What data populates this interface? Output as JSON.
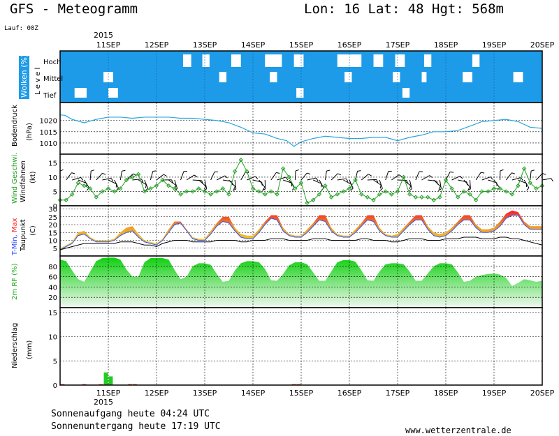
{
  "header": {
    "title": "GFS - Meteogramm",
    "location": "Lon: 16  Lat: 48  Hgt: 568m",
    "run": "Lauf: 00Z"
  },
  "axis": {
    "year": "2015",
    "dates": [
      "11SEP",
      "12SEP",
      "13SEP",
      "14SEP",
      "15SEP",
      "16SEP",
      "17SEP",
      "18SEP",
      "19SEP",
      "20SEP"
    ]
  },
  "footer": {
    "sunrise": "Sonnenaufgang heute 04:24 UTC",
    "sunset": "Sonnenuntergang heute 17:19 UTC",
    "site": "www.wetterzentrale.de"
  },
  "colors": {
    "cloud_bg": "#1e9be8",
    "pressure_line": "#29a6dc",
    "wind_line": "#22a022",
    "tmin_label": "#2040ff",
    "tmax_label": "#ff2020",
    "rh_fill": "#22cc22",
    "precip_bar": "#22cc22",
    "precip_small": "#e05020"
  },
  "chart_data": [
    {
      "type": "heatmap",
      "panel": "clouds",
      "ylabel": "Wolken (%)",
      "ylabel2": "L e v e l",
      "levels": [
        "Hoch",
        "Mittel",
        "Tief"
      ],
      "x_days": [
        10.0,
        20.0
      ],
      "cover_note": "blue = cloud cover; white gaps = clear",
      "clear_intervals": {
        "Hoch": [
          [
            12.55,
            12.72
          ],
          [
            12.95,
            13.1
          ],
          [
            13.55,
            13.75
          ],
          [
            14.25,
            14.6
          ],
          [
            14.85,
            15.05
          ],
          [
            15.75,
            16.25
          ],
          [
            16.5,
            16.7
          ],
          [
            16.95,
            17.15
          ],
          [
            17.55,
            17.7
          ],
          [
            18.55,
            18.7
          ]
        ],
        "Mittel": [
          [
            10.9,
            11.1
          ],
          [
            13.3,
            13.45
          ],
          [
            14.35,
            14.5
          ],
          [
            15.9,
            16.05
          ],
          [
            16.9,
            17.05
          ],
          [
            17.5,
            17.6
          ],
          [
            18.35,
            18.55
          ],
          [
            19.4,
            19.6
          ]
        ],
        "Tief": [
          [
            10.3,
            10.55
          ],
          [
            11.0,
            11.2
          ],
          [
            14.9,
            15.05
          ],
          [
            17.1,
            17.25
          ]
        ]
      }
    },
    {
      "type": "line",
      "panel": "pressure",
      "ylabel": "Bodendruck",
      "ylabel2": "(hPa)",
      "ylim": [
        1005,
        1028
      ],
      "yticks": [
        1010,
        1015,
        1020
      ],
      "x": [
        10.0,
        10.1,
        10.25,
        10.5,
        10.75,
        11.0,
        11.25,
        11.5,
        11.75,
        12.0,
        12.25,
        12.5,
        12.75,
        13.0,
        13.25,
        13.5,
        13.75,
        14.0,
        14.25,
        14.5,
        14.7,
        14.85,
        15.0,
        15.25,
        15.5,
        15.75,
        16.0,
        16.25,
        16.5,
        16.75,
        17.0,
        17.25,
        17.5,
        17.75,
        18.0,
        18.25,
        18.5,
        18.75,
        19.0,
        19.25,
        19.5,
        19.75,
        20.0
      ],
      "y": [
        1022.5,
        1022.3,
        1020.5,
        1019.0,
        1020.5,
        1021.5,
        1021.5,
        1021.0,
        1021.5,
        1021.5,
        1021.5,
        1021.0,
        1021.0,
        1020.5,
        1020.0,
        1019.0,
        1017.0,
        1014.5,
        1014.0,
        1012.0,
        1011.0,
        1008.5,
        1010.5,
        1012.0,
        1013.0,
        1012.5,
        1012.0,
        1012.0,
        1012.5,
        1012.5,
        1011.0,
        1012.5,
        1013.5,
        1015.0,
        1015.0,
        1015.5,
        1017.5,
        1019.5,
        1020.0,
        1020.5,
        1019.5,
        1017.0,
        1016.5
      ]
    },
    {
      "type": "line",
      "panel": "wind",
      "ylabel": "Wind Geschwi.",
      "ylabel2": "Windfahnen",
      "ylabel3": "(kt)",
      "ylim": [
        0,
        18
      ],
      "yticks": [
        0,
        5,
        10,
        15
      ],
      "x": [
        10.0,
        10.125,
        10.25,
        10.375,
        10.5,
        10.625,
        10.75,
        10.875,
        11.0,
        11.125,
        11.25,
        11.375,
        11.5,
        11.625,
        11.75,
        11.875,
        12.0,
        12.125,
        12.25,
        12.375,
        12.5,
        12.625,
        12.75,
        12.875,
        13.0,
        13.125,
        13.25,
        13.375,
        13.5,
        13.625,
        13.75,
        13.875,
        14.0,
        14.125,
        14.25,
        14.375,
        14.5,
        14.625,
        14.75,
        14.875,
        15.0,
        15.125,
        15.25,
        15.375,
        15.5,
        15.625,
        15.75,
        15.875,
        16.0,
        16.125,
        16.25,
        16.375,
        16.5,
        16.625,
        16.75,
        16.875,
        17.0,
        17.125,
        17.25,
        17.375,
        17.5,
        17.625,
        17.75,
        17.875,
        18.0,
        18.125,
        18.25,
        18.375,
        18.5,
        18.625,
        18.75,
        18.875,
        19.0,
        19.125,
        19.25,
        19.375,
        19.5,
        19.625,
        19.75,
        19.875,
        20.0
      ],
      "y": [
        2,
        2,
        4,
        8,
        7,
        6,
        3,
        5,
        6,
        5,
        6,
        9,
        10,
        11,
        5,
        6,
        7,
        9,
        7,
        6,
        4,
        5,
        5,
        6,
        5,
        4,
        5,
        6,
        4,
        12,
        16,
        12,
        6,
        5,
        4,
        5,
        4,
        13,
        10,
        6,
        8,
        1,
        2,
        4,
        7,
        3,
        4,
        5,
        6,
        9,
        4,
        3,
        2,
        4,
        5,
        4,
        5,
        10,
        4,
        3,
        3,
        3,
        2,
        3,
        9,
        6,
        3,
        5,
        4,
        2,
        5,
        5,
        6,
        6,
        5,
        4,
        7,
        13,
        8,
        6,
        7
      ]
    },
    {
      "type": "area",
      "panel": "temperature",
      "ylabel": "T-Min, Max",
      "ylabel2": "Taupunkt",
      "ylabel3": "(C)",
      "ylim": [
        0,
        32
      ],
      "yticks": [
        5,
        10,
        15,
        20,
        25,
        30
      ],
      "x": [
        10.0,
        10.125,
        10.25,
        10.375,
        10.5,
        10.625,
        10.75,
        10.875,
        11.0,
        11.125,
        11.25,
        11.375,
        11.5,
        11.625,
        11.75,
        11.875,
        12.0,
        12.125,
        12.25,
        12.375,
        12.5,
        12.625,
        12.75,
        12.875,
        13.0,
        13.125,
        13.25,
        13.375,
        13.5,
        13.625,
        13.75,
        13.875,
        14.0,
        14.125,
        14.25,
        14.375,
        14.5,
        14.625,
        14.75,
        14.875,
        15.0,
        15.125,
        15.25,
        15.375,
        15.5,
        15.625,
        15.75,
        15.875,
        16.0,
        16.125,
        16.25,
        16.375,
        16.5,
        16.625,
        16.75,
        16.875,
        17.0,
        17.125,
        17.25,
        17.375,
        17.5,
        17.625,
        17.75,
        17.875,
        18.0,
        18.125,
        18.25,
        18.375,
        18.5,
        18.625,
        18.75,
        18.875,
        19.0,
        19.125,
        19.25,
        19.375,
        19.5,
        19.625,
        19.75,
        19.875,
        20.0
      ],
      "series": [
        {
          "name": "T-Min",
          "values": [
            4,
            6,
            8,
            13,
            14,
            11,
            9,
            9,
            9,
            10,
            13,
            15,
            16,
            12,
            9,
            8,
            7,
            10,
            15,
            20,
            21,
            16,
            11,
            10,
            10,
            14,
            19,
            22,
            21,
            16,
            12,
            11,
            11,
            15,
            20,
            24,
            23,
            16,
            13,
            12,
            12,
            15,
            19,
            23,
            22,
            16,
            13,
            12,
            12,
            15,
            19,
            23,
            22,
            16,
            13,
            12,
            12,
            16,
            20,
            23,
            23,
            17,
            13,
            12,
            13,
            16,
            20,
            23,
            23,
            18,
            15,
            15,
            16,
            19,
            24,
            26,
            26,
            20,
            17,
            17,
            17
          ]
        },
        {
          "name": "T-Max",
          "values": [
            5,
            7,
            9,
            15,
            16,
            12,
            10,
            10,
            10,
            11,
            15,
            18,
            19,
            14,
            10,
            9,
            8,
            11,
            17,
            22,
            22,
            17,
            12,
            11,
            11,
            16,
            21,
            25,
            25,
            18,
            14,
            13,
            13,
            17,
            22,
            26,
            26,
            18,
            14,
            13,
            13,
            17,
            21,
            26,
            26,
            18,
            14,
            13,
            13,
            17,
            21,
            26,
            26,
            18,
            14,
            13,
            14,
            18,
            22,
            26,
            26,
            19,
            15,
            14,
            15,
            18,
            22,
            26,
            26,
            20,
            17,
            17,
            18,
            22,
            27,
            29,
            28,
            22,
            19,
            19,
            19
          ]
        },
        {
          "name": "Taupunkt",
          "values": [
            4,
            5,
            6,
            7,
            8,
            8,
            8,
            8,
            8,
            8,
            9,
            9,
            9,
            8,
            7,
            7,
            6,
            8,
            9,
            10,
            10,
            10,
            9,
            9,
            9,
            9,
            10,
            10,
            10,
            10,
            9,
            9,
            10,
            10,
            10,
            11,
            11,
            11,
            10,
            10,
            10,
            10,
            11,
            11,
            11,
            10,
            10,
            10,
            10,
            10,
            11,
            11,
            10,
            10,
            10,
            9,
            9,
            10,
            11,
            11,
            11,
            10,
            10,
            10,
            11,
            11,
            11,
            12,
            12,
            12,
            11,
            11,
            11,
            12,
            12,
            11,
            11,
            10,
            9,
            8,
            7
          ]
        }
      ]
    },
    {
      "type": "area",
      "panel": "humidity",
      "ylabel": "2m RF (%)",
      "ylim": [
        0,
        100
      ],
      "yticks": [
        20,
        40,
        60,
        80
      ],
      "x": [
        10.0,
        10.125,
        10.25,
        10.375,
        10.5,
        10.625,
        10.75,
        10.875,
        11.0,
        11.125,
        11.25,
        11.375,
        11.5,
        11.625,
        11.75,
        11.875,
        12.0,
        12.125,
        12.25,
        12.375,
        12.5,
        12.625,
        12.75,
        12.875,
        13.0,
        13.125,
        13.25,
        13.375,
        13.5,
        13.625,
        13.75,
        13.875,
        14.0,
        14.125,
        14.25,
        14.375,
        14.5,
        14.625,
        14.75,
        14.875,
        15.0,
        15.125,
        15.25,
        15.375,
        15.5,
        15.625,
        15.75,
        15.875,
        16.0,
        16.125,
        16.25,
        16.375,
        16.5,
        16.625,
        16.75,
        16.875,
        17.0,
        17.125,
        17.25,
        17.375,
        17.5,
        17.625,
        17.75,
        17.875,
        18.0,
        18.125,
        18.25,
        18.375,
        18.5,
        18.625,
        18.75,
        18.875,
        19.0,
        19.125,
        19.25,
        19.375,
        19.5,
        19.625,
        19.75,
        19.875,
        20.0
      ],
      "values": [
        93,
        90,
        72,
        55,
        50,
        70,
        90,
        96,
        97,
        97,
        93,
        74,
        60,
        60,
        88,
        96,
        96,
        96,
        93,
        73,
        55,
        60,
        80,
        86,
        86,
        83,
        65,
        50,
        52,
        72,
        86,
        90,
        90,
        88,
        75,
        53,
        52,
        65,
        82,
        88,
        88,
        84,
        68,
        52,
        52,
        70,
        88,
        92,
        92,
        89,
        72,
        53,
        52,
        70,
        84,
        86,
        86,
        84,
        70,
        52,
        52,
        66,
        80,
        86,
        86,
        84,
        68,
        50,
        52,
        60,
        63,
        65,
        66,
        64,
        58,
        42,
        48,
        55,
        53,
        50,
        52
      ]
    },
    {
      "type": "bar",
      "panel": "precipitation",
      "ylabel": "Niederschlag",
      "ylabel2": "(mm)",
      "ylim": [
        0,
        16
      ],
      "yticks": [
        0,
        5,
        10,
        15
      ],
      "x": [
        10.05,
        10.5,
        10.85,
        10.95,
        11.05,
        11.45,
        11.55,
        14.85,
        14.95
      ],
      "values": [
        0.2,
        0.2,
        0.2,
        2.6,
        1.8,
        0.2,
        0.2,
        0.2,
        0.2
      ]
    }
  ]
}
